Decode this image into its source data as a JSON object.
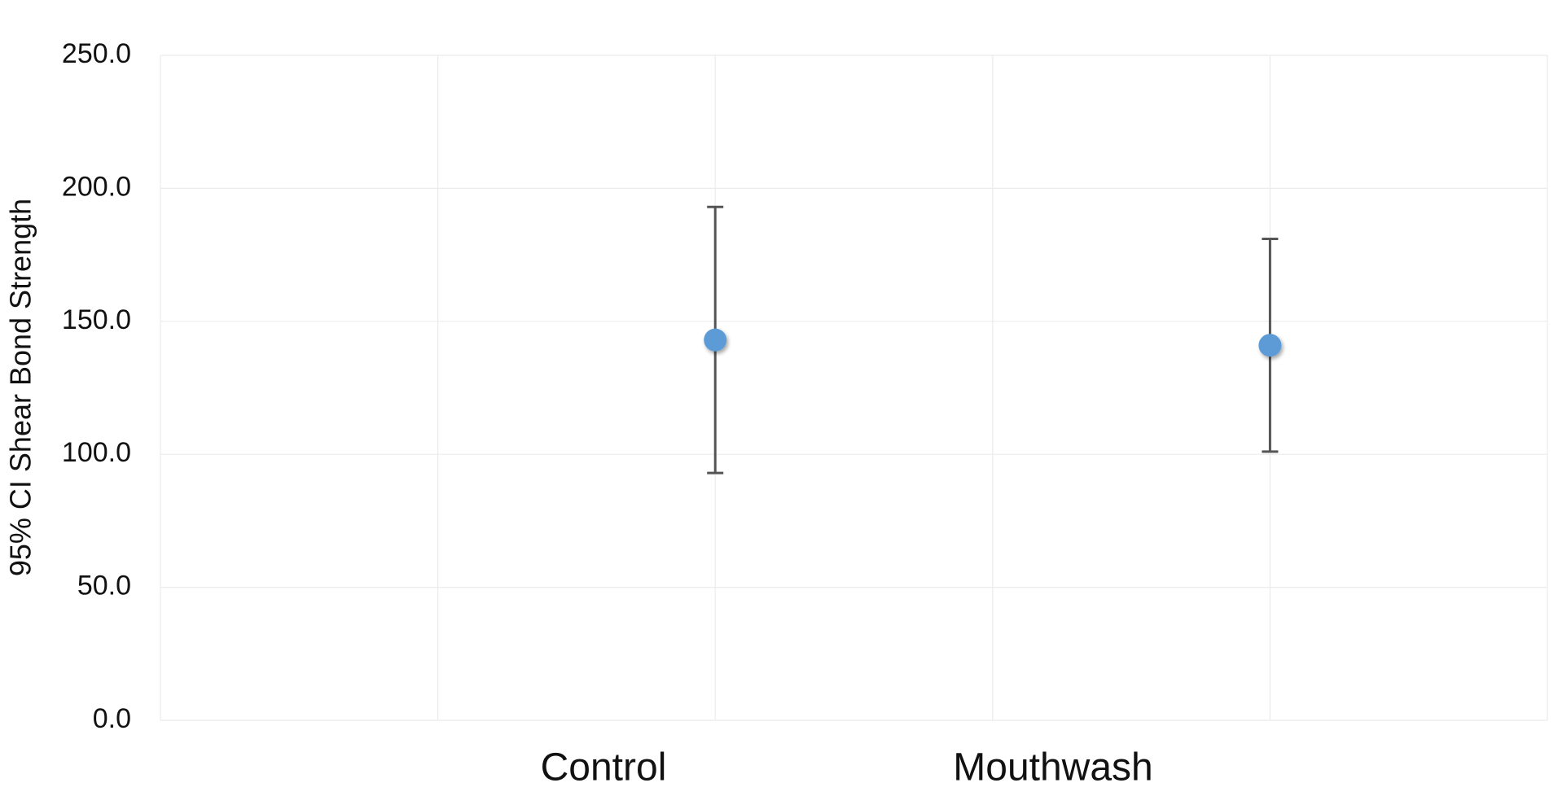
{
  "chart_data": {
    "type": "errorbar",
    "y_label": "95% CI Shear Bond Strength",
    "categories": [
      "Control",
      "Mouthwash"
    ],
    "values": [
      143,
      141
    ],
    "errors": [
      50,
      40
    ],
    "color": "#5b9bd5",
    "error_color": "#555555",
    "ylim": [
      0,
      250
    ],
    "yticks": [
      {
        "value": 0,
        "label": "0.0"
      },
      {
        "value": 50,
        "label": "50.0"
      },
      {
        "value": 100,
        "label": "100.0"
      },
      {
        "value": 150,
        "label": "150.0"
      },
      {
        "value": 200,
        "label": "200.0"
      },
      {
        "value": 250,
        "label": "250.0"
      }
    ],
    "grid": true
  }
}
